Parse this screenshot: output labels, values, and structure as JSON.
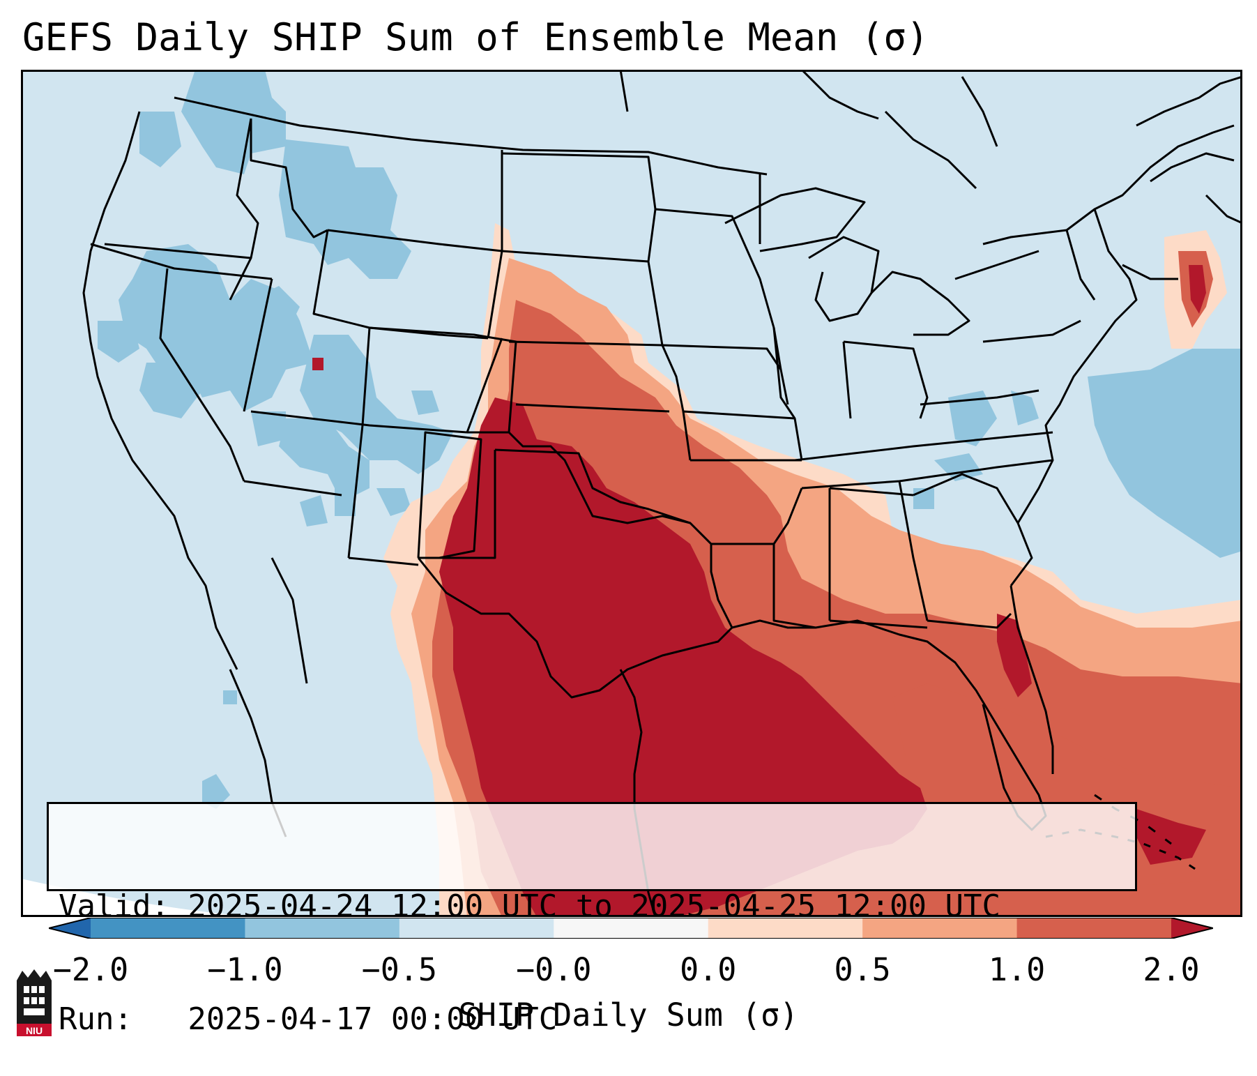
{
  "title": "GEFS Daily SHIP Sum of Ensemble Mean (σ)",
  "map": {
    "region": "Contiguous United States",
    "variable": "SHIP daily sum of ensemble mean",
    "regions_depicted": [
      {
        "area": "Texas, Oklahoma, western Gulf of Mexico, eastern New Mexico",
        "level": "2.0"
      },
      {
        "area": "Kansas, Arkansas, Louisiana, Mississippi",
        "level": "1.0"
      },
      {
        "area": "Alabama, Georgia, Florida, western Atlantic",
        "level": "0.5"
      },
      {
        "area": "Intermountain West, Northwest",
        "level": "-1.0"
      },
      {
        "area": "Offshore Nova Scotia",
        "level": "1.0"
      }
    ],
    "colors": {
      "ocean_background": "#d1e5f0",
      "land_background": "#d1e5f0",
      "borders": "#000000"
    }
  },
  "info": {
    "valid_line": "Valid: 2025-04-24 12:00 UTC to 2025-04-25 12:00 UTC",
    "run_line": "Run:   2025-04-17 00:00 UTC"
  },
  "colorbar": {
    "label": "SHIP Daily Sum (σ)",
    "ticks": [
      "−2.0",
      "−1.0",
      "−0.5",
      "−0.0",
      "0.0",
      "0.5",
      "1.0",
      "2.0"
    ],
    "bins": [
      {
        "color": "#2166ac",
        "range": "< -2.0"
      },
      {
        "color": "#4393c3",
        "range": "-2.0 to -1.0"
      },
      {
        "color": "#92c5de",
        "range": "-1.0 to -0.5"
      },
      {
        "color": "#d1e5f0",
        "range": "-0.5 to -0.0"
      },
      {
        "color": "#f7f7f7",
        "range": "-0.0 to 0.0"
      },
      {
        "color": "#fddbc7",
        "range": "0.0 to 0.5"
      },
      {
        "color": "#f4a582",
        "range": "0.5 to 1.0"
      },
      {
        "color": "#d6604d",
        "range": "1.0 to 2.0"
      },
      {
        "color": "#b2182b",
        "range": "> 2.0"
      }
    ]
  },
  "logo": {
    "text": "NIU"
  }
}
